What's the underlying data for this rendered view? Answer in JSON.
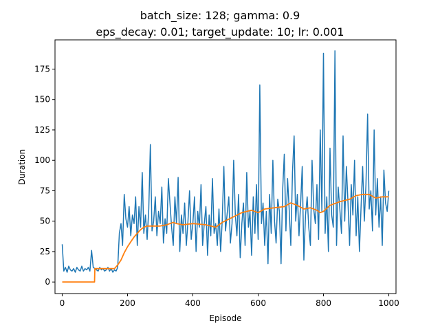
{
  "chart_data": {
    "type": "line",
    "title_line1": "batch_size: 128; gamma: 0.9",
    "title_line2": "eps_decay: 0.01; target_update: 10; lr: 0.001",
    "xlabel": "Episode",
    "ylabel": "Duration",
    "xlim": [
      -22,
      1022
    ],
    "ylim": [
      -9.5,
      199
    ],
    "xticks": [
      0,
      200,
      400,
      600,
      800,
      1000
    ],
    "yticks": [
      0,
      25,
      50,
      75,
      100,
      125,
      150,
      175
    ],
    "grid": false,
    "series": [
      {
        "color": "#1f77b4",
        "x": [
          0,
          5,
          10,
          15,
          20,
          25,
          30,
          35,
          40,
          45,
          50,
          55,
          60,
          65,
          70,
          75,
          80,
          85,
          90,
          95,
          100,
          105,
          110,
          115,
          120,
          125,
          130,
          135,
          140,
          145,
          150,
          155,
          160,
          165,
          170,
          175,
          180,
          185,
          190,
          195,
          200,
          205,
          210,
          215,
          220,
          225,
          230,
          235,
          240,
          245,
          250,
          255,
          260,
          265,
          270,
          275,
          280,
          285,
          290,
          295,
          300,
          305,
          310,
          315,
          320,
          325,
          330,
          335,
          340,
          345,
          350,
          355,
          360,
          365,
          370,
          375,
          380,
          385,
          390,
          395,
          400,
          405,
          410,
          415,
          420,
          425,
          430,
          435,
          440,
          445,
          450,
          455,
          460,
          465,
          470,
          475,
          480,
          485,
          490,
          495,
          500,
          505,
          510,
          515,
          520,
          525,
          530,
          535,
          540,
          545,
          550,
          555,
          560,
          565,
          570,
          575,
          580,
          585,
          590,
          595,
          600,
          605,
          610,
          615,
          620,
          625,
          630,
          635,
          640,
          645,
          650,
          655,
          660,
          665,
          670,
          675,
          680,
          685,
          690,
          695,
          700,
          705,
          710,
          715,
          720,
          725,
          730,
          735,
          740,
          745,
          750,
          755,
          760,
          765,
          770,
          775,
          780,
          785,
          790,
          795,
          800,
          805,
          810,
          815,
          820,
          825,
          830,
          835,
          840,
          845,
          850,
          855,
          860,
          865,
          870,
          875,
          880,
          885,
          890,
          895,
          900,
          905,
          910,
          915,
          920,
          925,
          930,
          935,
          940,
          945,
          950,
          955,
          960,
          965,
          970,
          975,
          980,
          985,
          990,
          995,
          1000
        ],
        "values": [
          31,
          9,
          12,
          8,
          13,
          10,
          9,
          11,
          8,
          12,
          10,
          9,
          13,
          9,
          11,
          10,
          12,
          9,
          26,
          12,
          11,
          10,
          9,
          12,
          10,
          11,
          9,
          10,
          12,
          9,
          11,
          8,
          10,
          9,
          12,
          40,
          48,
          30,
          72,
          52,
          45,
          62,
          38,
          55,
          48,
          70,
          30,
          62,
          45,
          90,
          40,
          55,
          35,
          60,
          113,
          42,
          50,
          70,
          38,
          58,
          48,
          78,
          32,
          52,
          40,
          85,
          65,
          45,
          30,
          70,
          48,
          86,
          25,
          55,
          40,
          65,
          30,
          50,
          75,
          35,
          48,
          70,
          25,
          58,
          45,
          80,
          30,
          48,
          62,
          22,
          55,
          38,
          85,
          40,
          48,
          30,
          60,
          25,
          50,
          95,
          42,
          56,
          70,
          32,
          48,
          100,
          55,
          38,
          72,
          20,
          48,
          65,
          30,
          90,
          45,
          58,
          22,
          70,
          40,
          80,
          35,
          162,
          48,
          65,
          30,
          58,
          15,
          72,
          40,
          100,
          50,
          32,
          68,
          58,
          15,
          75,
          105,
          42,
          85,
          60,
          30,
          90,
          120,
          50,
          72,
          38,
          65,
          95,
          18,
          55,
          70,
          45,
          30,
          100,
          60,
          48,
          80,
          35,
          125,
          58,
          188,
          40,
          70,
          25,
          110,
          55,
          45,
          190,
          30,
          78,
          60,
          40,
          120,
          50,
          95,
          65,
          30,
          80,
          55,
          100,
          38,
          70,
          25,
          62,
          95,
          50,
          80,
          138,
          60,
          75,
          42,
          125,
          55,
          85,
          45,
          70,
          30,
          92,
          65,
          58,
          75
        ]
      },
      {
        "color": "#ff7f0e",
        "x": [
          0,
          99,
          100,
          160,
          170,
          180,
          190,
          200,
          210,
          220,
          230,
          240,
          250,
          260,
          270,
          280,
          300,
          320,
          330,
          340,
          350,
          370,
          400,
          440,
          470,
          490,
          520,
          550,
          580,
          600,
          620,
          650,
          680,
          700,
          720,
          740,
          760,
          780,
          790,
          800,
          820,
          850,
          880,
          900,
          920,
          940,
          960,
          980,
          1000
        ],
        "values": [
          0,
          0,
          11,
          11,
          14,
          18,
          24,
          29,
          33,
          37,
          40,
          43,
          45,
          46,
          46,
          46,
          46,
          47,
          48,
          49,
          48,
          47,
          48,
          47,
          45,
          49,
          53,
          57,
          59,
          57,
          60,
          61,
          62,
          65,
          63,
          60,
          61,
          59,
          57,
          58,
          63,
          66,
          68,
          71,
          72,
          72,
          69,
          70,
          70
        ]
      }
    ]
  }
}
